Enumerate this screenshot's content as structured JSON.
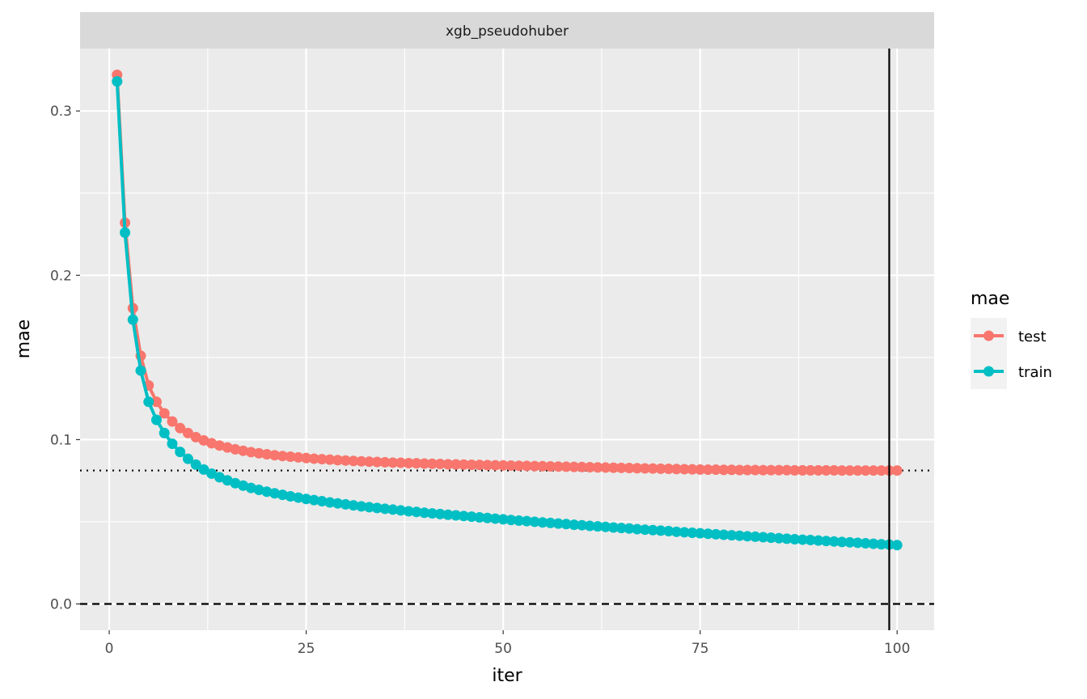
{
  "chart_data": {
    "type": "line",
    "title": "",
    "facet": "xgb_pseudohuber",
    "xlabel": "iter",
    "ylabel": "mae",
    "xlim": [
      -3.7,
      104.7
    ],
    "ylim": [
      -0.016,
      0.338
    ],
    "x_ticks": [
      0,
      25,
      50,
      75,
      100
    ],
    "x_tick_labels": [
      "0",
      "25",
      "50",
      "75",
      "100"
    ],
    "y_ticks": [
      0.0,
      0.1,
      0.2,
      0.3
    ],
    "y_tick_labels": [
      "0.0",
      "0.1",
      "0.2",
      "0.3"
    ],
    "grid": true,
    "legend": {
      "title": "mae",
      "placement": "right"
    },
    "series": [
      {
        "name": "test",
        "color": "#F8766D",
        "x": [
          1,
          2,
          3,
          4,
          5,
          6,
          7,
          8,
          9,
          10,
          11,
          12,
          13,
          14,
          15,
          16,
          17,
          18,
          19,
          20,
          21,
          22,
          23,
          24,
          25,
          26,
          27,
          28,
          29,
          30,
          31,
          32,
          33,
          34,
          35,
          36,
          37,
          38,
          39,
          40,
          41,
          42,
          43,
          44,
          45,
          46,
          47,
          48,
          49,
          50,
          51,
          52,
          53,
          54,
          55,
          56,
          57,
          58,
          59,
          60,
          61,
          62,
          63,
          64,
          65,
          66,
          67,
          68,
          69,
          70,
          71,
          72,
          73,
          74,
          75,
          76,
          77,
          78,
          79,
          80,
          81,
          82,
          83,
          84,
          85,
          86,
          87,
          88,
          89,
          90,
          91,
          92,
          93,
          94,
          95,
          96,
          97,
          98,
          99,
          100
        ],
        "y": [
          0.322,
          0.232,
          0.18,
          0.151,
          0.133,
          0.123,
          0.116,
          0.111,
          0.107,
          0.104,
          0.1015,
          0.0995,
          0.0978,
          0.0964,
          0.0952,
          0.0941,
          0.0932,
          0.0924,
          0.0917,
          0.0911,
          0.0905,
          0.09,
          0.0896,
          0.0892,
          0.0888,
          0.0884,
          0.0881,
          0.0878,
          0.0875,
          0.0873,
          0.087,
          0.0868,
          0.0866,
          0.0864,
          0.0862,
          0.086,
          0.0859,
          0.0857,
          0.0856,
          0.0854,
          0.0853,
          0.0852,
          0.085,
          0.0849,
          0.0848,
          0.0847,
          0.0846,
          0.0845,
          0.0844,
          0.0843,
          0.0842,
          0.0841,
          0.084,
          0.0839,
          0.0838,
          0.0837,
          0.0836,
          0.0835,
          0.0834,
          0.0833,
          0.0832,
          0.0831,
          0.083,
          0.0829,
          0.0828,
          0.0827,
          0.0826,
          0.0825,
          0.0824,
          0.0823,
          0.0822,
          0.0821,
          0.082,
          0.0819,
          0.0818,
          0.0817,
          0.0817,
          0.0816,
          0.0816,
          0.0815,
          0.0815,
          0.0815,
          0.0814,
          0.0814,
          0.0814,
          0.0814,
          0.0813,
          0.0813,
          0.0813,
          0.0813,
          0.0813,
          0.0813,
          0.0812,
          0.0812,
          0.0812,
          0.0812,
          0.0812,
          0.0812,
          0.0812,
          0.0812
        ]
      },
      {
        "name": "train",
        "color": "#00BFC4",
        "x": [
          1,
          2,
          3,
          4,
          5,
          6,
          7,
          8,
          9,
          10,
          11,
          12,
          13,
          14,
          15,
          16,
          17,
          18,
          19,
          20,
          21,
          22,
          23,
          24,
          25,
          26,
          27,
          28,
          29,
          30,
          31,
          32,
          33,
          34,
          35,
          36,
          37,
          38,
          39,
          40,
          41,
          42,
          43,
          44,
          45,
          46,
          47,
          48,
          49,
          50,
          51,
          52,
          53,
          54,
          55,
          56,
          57,
          58,
          59,
          60,
          61,
          62,
          63,
          64,
          65,
          66,
          67,
          68,
          69,
          70,
          71,
          72,
          73,
          74,
          75,
          76,
          77,
          78,
          79,
          80,
          81,
          82,
          83,
          84,
          85,
          86,
          87,
          88,
          89,
          90,
          91,
          92,
          93,
          94,
          95,
          96,
          97,
          98,
          99,
          100
        ],
        "y": [
          0.318,
          0.226,
          0.173,
          0.142,
          0.123,
          0.112,
          0.104,
          0.0975,
          0.0925,
          0.0883,
          0.0848,
          0.0818,
          0.0793,
          0.0771,
          0.0752,
          0.0735,
          0.072,
          0.0706,
          0.0694,
          0.0683,
          0.0673,
          0.0664,
          0.0655,
          0.0647,
          0.0639,
          0.0632,
          0.0625,
          0.0618,
          0.0612,
          0.0606,
          0.06,
          0.0594,
          0.0589,
          0.0584,
          0.0579,
          0.0574,
          0.0569,
          0.0564,
          0.056,
          0.0555,
          0.0551,
          0.0547,
          0.0543,
          0.0539,
          0.0535,
          0.0531,
          0.0527,
          0.0523,
          0.0519,
          0.0515,
          0.0511,
          0.0507,
          0.0504,
          0.05,
          0.0496,
          0.0493,
          0.0489,
          0.0486,
          0.0482,
          0.0479,
          0.0475,
          0.0472,
          0.0469,
          0.0465,
          0.0462,
          0.0459,
          0.0455,
          0.0452,
          0.0449,
          0.0446,
          0.0443,
          0.0439,
          0.0436,
          0.0433,
          0.043,
          0.0427,
          0.0424,
          0.0421,
          0.0418,
          0.0415,
          0.0412,
          0.0409,
          0.0406,
          0.0403,
          0.04,
          0.0397,
          0.0394,
          0.0391,
          0.0389,
          0.0386,
          0.0383,
          0.038,
          0.0377,
          0.0375,
          0.0372,
          0.0369,
          0.0366,
          0.0363,
          0.0361,
          0.0358
        ]
      }
    ],
    "reference_lines": [
      {
        "orientation": "horizontal",
        "value": 0.0,
        "style": "dashed",
        "color": "#000000"
      },
      {
        "orientation": "horizontal",
        "value": 0.0812,
        "style": "dotted",
        "color": "#000000"
      },
      {
        "orientation": "vertical",
        "value": 99,
        "style": "solid",
        "color": "#000000"
      }
    ]
  }
}
